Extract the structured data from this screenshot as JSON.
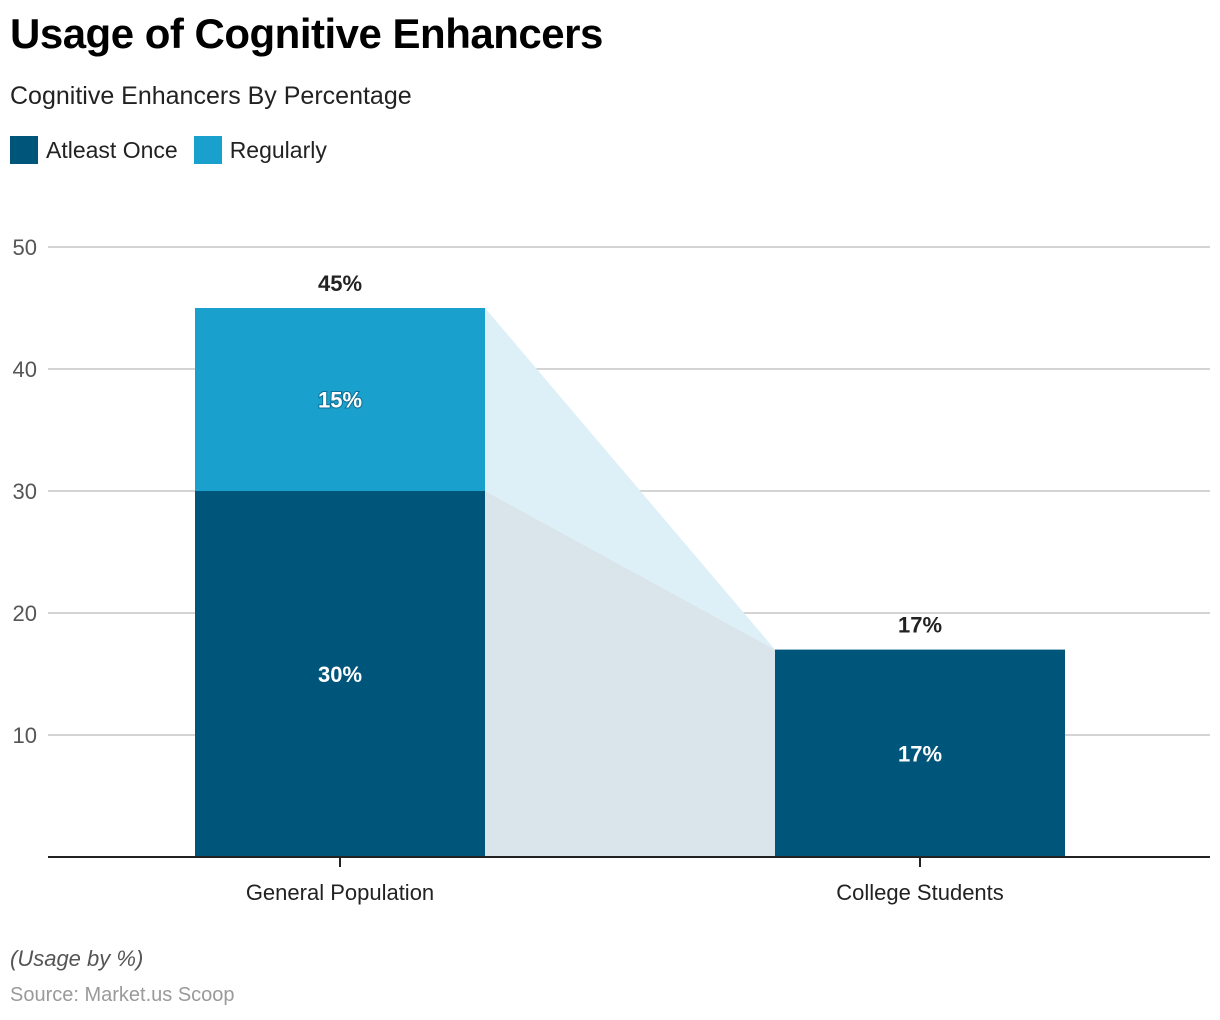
{
  "header": {
    "title": "Usage of Cognitive Enhancers",
    "subtitle": "Cognitive Enhancers By Percentage"
  },
  "footer": {
    "note": "(Usage by %)",
    "source": "Source: Market.us Scoop"
  },
  "colors": {
    "atleast_once": "#00557A",
    "regularly": "#19A0CC",
    "connector_atleast_once": "#D9E4EB",
    "connector_regularly": "#DDF0F7",
    "gridline": "#D4D4D4",
    "axis": "#222222"
  },
  "chart_data": {
    "type": "bar",
    "stacked": true,
    "title": "Usage of Cognitive Enhancers",
    "subtitle": "Cognitive Enhancers By Percentage",
    "xlabel": "",
    "ylabel": "",
    "categories": [
      "General Population",
      "College Students"
    ],
    "series": [
      {
        "name": "Atleast Once",
        "values": [
          30,
          17
        ],
        "labels": [
          "30%",
          "17%"
        ]
      },
      {
        "name": "Regularly",
        "values": [
          15,
          0
        ],
        "labels": [
          "15%",
          ""
        ]
      }
    ],
    "totals": [
      45,
      17
    ],
    "total_labels": [
      "45%",
      "17%"
    ],
    "ylim": [
      0,
      50
    ],
    "yticks": [
      10,
      20,
      30,
      40,
      50
    ],
    "grid": true,
    "legend": "top-left",
    "connectors": true
  }
}
